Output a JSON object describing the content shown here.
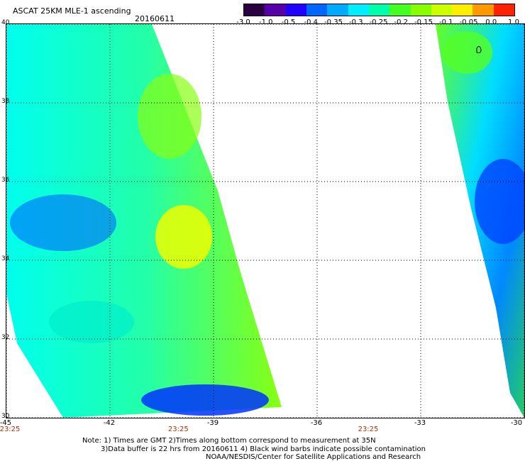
{
  "header": {
    "title": "ASCAT 25KM MLE-1 ascending",
    "date": "20160611"
  },
  "colorbar": {
    "ticks": [
      "-3.0",
      "-1.0",
      "-0.5",
      "-0.4",
      "-0.35",
      "-0.3",
      "-0.25",
      "-0.2",
      "-0.15",
      "-0.1",
      "-0.05",
      "0.0",
      "1.0"
    ],
    "colors": [
      "#2a0040",
      "#5500a8",
      "#2200ff",
      "#0066ff",
      "#00aaff",
      "#00eeff",
      "#00ffaa",
      "#44ff22",
      "#88ff00",
      "#ccff00",
      "#ffee00",
      "#ff9900",
      "#ff2200"
    ]
  },
  "map": {
    "lat_ticks": [
      "40",
      "38",
      "36",
      "34",
      "32",
      "30"
    ],
    "lon_ticks": [
      "-45",
      "-42",
      "-39",
      "-36",
      "-33",
      "-30"
    ],
    "lon_range": [
      -45,
      -30
    ],
    "lat_range": [
      30,
      40
    ],
    "swath_times": [
      "23:25",
      "23:25",
      "23:25"
    ],
    "swath_time_lons": [
      -45,
      -40,
      -34.5
    ]
  },
  "notes": {
    "line1": "Note: 1) Times are GMT 2)Times along bottom correspond to measurement at 35N",
    "line2": "3)Data buffer is 22 hrs from 20160611 4) Black wind barbs indicate possible contamination",
    "line3": "NOAA/NESDIS/Center for Satellite Applications and Research"
  }
}
